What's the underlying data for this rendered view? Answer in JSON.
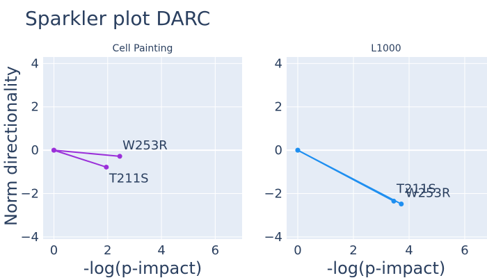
{
  "title": "Sparkler plot DARC",
  "y_axis_label": "Norm directionality",
  "colors": {
    "panel_bg": "#e5ecf6",
    "grid": "#ffffff",
    "text": "#2a3f5f"
  },
  "chart_data": [
    {
      "type": "line",
      "title": "Cell Painting",
      "xlabel": "-log(p-impact)",
      "ylabel": "Norm directionality",
      "xlim": [
        -0.4,
        7
      ],
      "ylim": [
        -4.1,
        4.3
      ],
      "xticks": [
        0,
        2,
        4,
        6
      ],
      "yticks": [
        -4,
        -2,
        0,
        2,
        4
      ],
      "grid": true,
      "color": "#9b30d9",
      "series": [
        {
          "name": "W253R",
          "points": [
            [
              0,
              0
            ],
            [
              2.45,
              -0.28
            ]
          ]
        },
        {
          "name": "T211S",
          "points": [
            [
              0,
              0
            ],
            [
              1.95,
              -0.78
            ]
          ]
        }
      ]
    },
    {
      "type": "line",
      "title": "L1000",
      "xlabel": "-log(p-impact)",
      "ylabel": "",
      "xlim": [
        -0.4,
        7
      ],
      "ylim": [
        -4.1,
        4.3
      ],
      "xticks": [
        0,
        2,
        4,
        6
      ],
      "yticks": [
        -4,
        -2,
        0,
        2,
        4
      ],
      "grid": true,
      "color": "#1f8ff0",
      "series": [
        {
          "name": "T211S",
          "points": [
            [
              0,
              0
            ],
            [
              3.45,
              -2.35
            ]
          ]
        },
        {
          "name": "W253R",
          "points": [
            [
              0,
              0
            ],
            [
              3.72,
              -2.48
            ]
          ]
        }
      ]
    }
  ]
}
